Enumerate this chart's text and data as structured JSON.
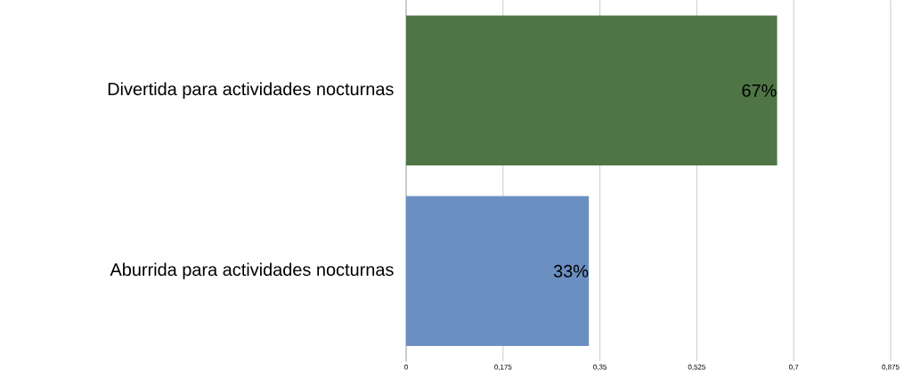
{
  "chart_data": {
    "type": "bar",
    "orientation": "horizontal",
    "categories": [
      "Divertida para actividades nocturnas",
      "Aburrida para actividades nocturnas"
    ],
    "values": [
      0.67,
      0.33
    ],
    "colors": [
      "#4f7545",
      "#6b8fc0"
    ],
    "value_labels": [
      "67%",
      "33%"
    ],
    "xlim": [
      0,
      0.875
    ],
    "xticks": [
      0,
      {
        "value": 0.175,
        "label": "0,175"
      },
      {
        "value": 0.35,
        "label": "0,35"
      },
      {
        "value": 0.525,
        "label": "0,525"
      },
      {
        "value": 0.7,
        "label": "0,7"
      },
      {
        "value": 0.875,
        "label": "0,875"
      }
    ],
    "grid": "x"
  }
}
